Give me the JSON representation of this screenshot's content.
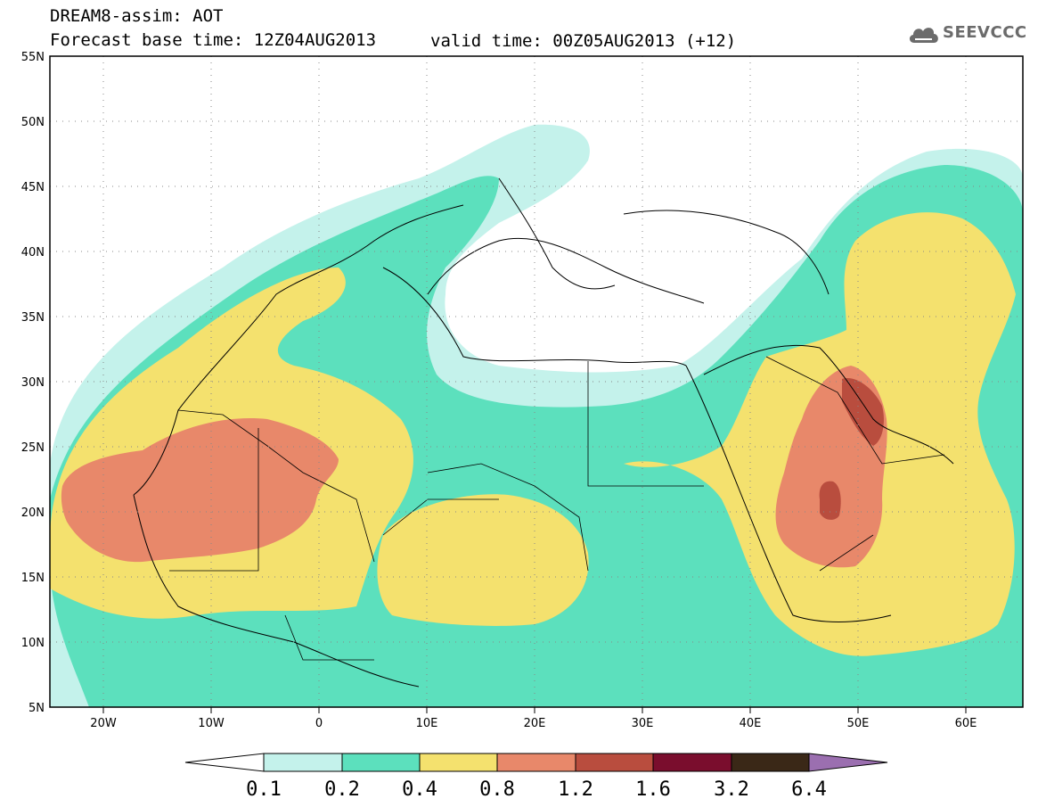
{
  "header": {
    "title_line1": "DREAM8-assim: AOT",
    "title_line2": "Forecast base time: 12Z04AUG2013",
    "valid_time": "valid time: 00Z05AUG2013 (+12)"
  },
  "logo": {
    "text": "SEEVCCC",
    "icon": "cloud-icon"
  },
  "axes": {
    "lat_labels": [
      "55N",
      "50N",
      "45N",
      "40N",
      "35N",
      "30N",
      "25N",
      "20N",
      "15N",
      "10N",
      "5N"
    ],
    "lon_labels": [
      "20W",
      "10W",
      "0",
      "10E",
      "20E",
      "30E",
      "40E",
      "50E",
      "60E"
    ]
  },
  "legend": {
    "values": [
      "0.1",
      "0.2",
      "0.4",
      "0.8",
      "1.2",
      "1.6",
      "3.2",
      "6.4"
    ],
    "colors": [
      "#c4f2eb",
      "#5ce0bd",
      "#f4e16e",
      "#e8886a",
      "#b94d3e",
      "#7a0d2d",
      "#3a2817",
      "#9b6fb0"
    ]
  },
  "map_colors": {
    "light_teal": "#c4f2eb",
    "teal": "#5ce0bd",
    "yellow": "#f4e16e",
    "orange": "#e8886a",
    "dark_red": "#b94d3e"
  }
}
